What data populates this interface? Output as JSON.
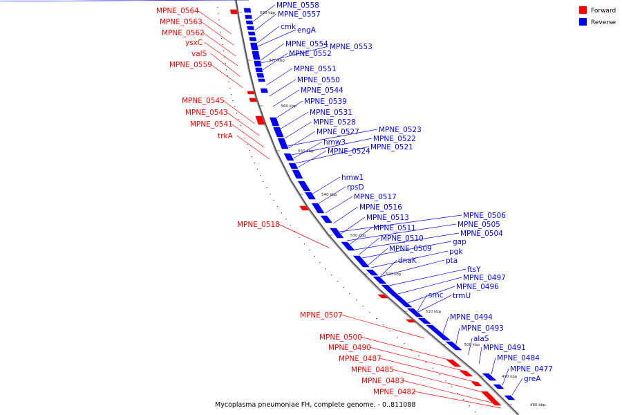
{
  "caption": "Mycoplasma pneumoniae FH, complete genome. - 0..811088",
  "legend": [
    {
      "label": "Forward",
      "color": "#ff0000"
    },
    {
      "label": "Reverse",
      "color": "#0000ff"
    }
  ],
  "ticks": [
    "580 kbp",
    "570 kbp",
    "560 kbp",
    "550 kbp",
    "540 kbp",
    "530 kbp",
    "520 kbp",
    "510 kbp",
    "500 kbp",
    "490 kbp",
    "480 kbp"
  ],
  "forward_labels": [
    "MPNE_0564",
    "MPNE_0563",
    "MPNE_0562",
    "ysxC",
    "valS",
    "MPNE_0559",
    "MPNE_0545",
    "MPNE_0543",
    "MPNE_0541",
    "trkA",
    "MPNE_0518",
    "MPNE_0507",
    "MPNE_0500",
    "MPNE_0490",
    "MPNE_0487",
    "MPNE_0485",
    "MPNE_0483",
    "MPNE_0482"
  ],
  "reverse_labels": [
    "MPNE_0558",
    "MPNE_0557",
    "cmk",
    "engA",
    "MPNE_0554",
    "MPNE_0553",
    "MPNE_0552",
    "MPNE_0551",
    "MPNE_0550",
    "MPNE_0544",
    "MPNE_0539",
    "MPNE_0531",
    "MPNE_0528",
    "MPNE_0527",
    "hmw3",
    "MPNE_0524",
    "MPNE_0523",
    "MPNE_0522",
    "MPNE_0521",
    "hmw1",
    "rpsD",
    "MPNE_0517",
    "MPNE_0516",
    "MPNE_0513",
    "MPNE_0511",
    "MPNE_0510",
    "MPNE_0509",
    "dnaK",
    "MPNE_0506",
    "MPNE_0505",
    "MPNE_0504",
    "gap",
    "pgk",
    "pta",
    "ftsY",
    "MPNE_0497",
    "MPNE_0496",
    "smc",
    "trmU",
    "MPNE_0494",
    "MPNE_0493",
    "alaS",
    "MPNE_0491",
    "MPNE_0484",
    "MPNE_0477",
    "greA"
  ]
}
